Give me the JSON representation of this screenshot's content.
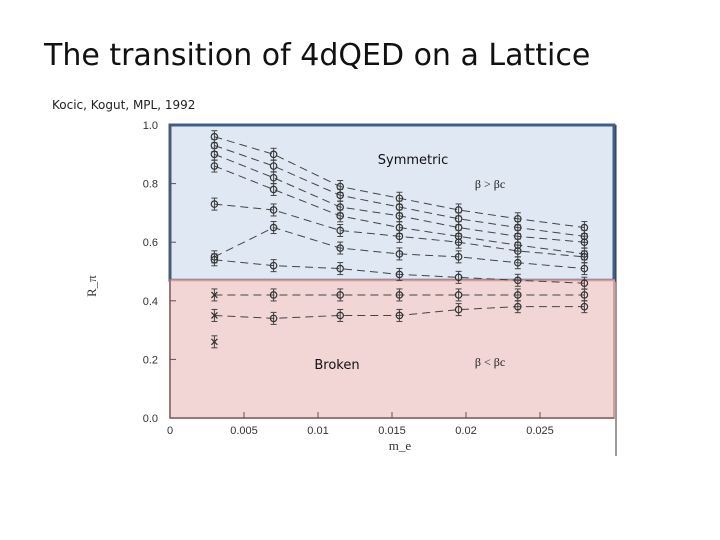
{
  "slide": {
    "title": "The transition of 4dQED on a Lattice",
    "citation": "Kocic, Kogut, MPL, 1992"
  },
  "chart_data": {
    "type": "scatter",
    "xlabel": "m_e",
    "ylabel": "R_π",
    "xlim": [
      0,
      0.03
    ],
    "ylim": [
      0,
      1.0
    ],
    "x_ticks": [
      "0",
      "0.005",
      "0.01",
      "0.015",
      "0.02",
      "0.025"
    ],
    "x_tick_values": [
      0,
      0.005,
      0.01,
      0.015,
      0.02,
      0.025
    ],
    "y_ticks": [
      "0.0",
      "0.2",
      "0.4",
      "0.6",
      "0.8",
      "1.0"
    ],
    "y_tick_values": [
      0,
      0.2,
      0.4,
      0.6,
      0.8,
      1.0
    ],
    "regions": [
      {
        "label": "Symmetric",
        "condition": "β > βc",
        "y_range": [
          0.47,
          1.0
        ],
        "color": "#dfe8f3",
        "border": "#3f5f8a"
      },
      {
        "label": "Broken",
        "condition": "β < βc",
        "y_range": [
          0.0,
          0.47
        ],
        "color": "#f2d6d6",
        "border": "#d99a9a"
      }
    ],
    "x": [
      0.003,
      0.007,
      0.0115,
      0.0155,
      0.0195,
      0.0235,
      0.028
    ],
    "series": [
      {
        "values": [
          0.96,
          0.9,
          0.79,
          0.75,
          0.71,
          0.68,
          0.65
        ]
      },
      {
        "values": [
          0.93,
          0.86,
          0.76,
          0.72,
          0.68,
          0.65,
          0.62
        ]
      },
      {
        "values": [
          0.9,
          0.82,
          0.72,
          0.69,
          0.65,
          0.62,
          0.6
        ]
      },
      {
        "values": [
          0.86,
          0.78,
          0.69,
          0.65,
          0.62,
          0.59,
          0.56
        ]
      },
      {
        "values": [
          0.73,
          0.71,
          0.64,
          0.62,
          0.6,
          0.57,
          0.55
        ]
      },
      {
        "values": [
          0.55,
          0.65,
          0.58,
          0.56,
          0.55,
          0.53,
          0.51
        ]
      },
      {
        "values": [
          0.54,
          0.52,
          0.51,
          0.49,
          0.48,
          0.47,
          0.46
        ]
      },
      {
        "values": [
          0.42,
          0.42,
          0.42,
          0.42,
          0.42,
          0.42,
          0.42
        ]
      },
      {
        "values": [
          0.35,
          0.34,
          0.35,
          0.35,
          0.37,
          0.38,
          0.38
        ]
      },
      {
        "values": [
          0.26,
          null,
          null,
          null,
          null,
          null,
          null
        ]
      }
    ]
  }
}
